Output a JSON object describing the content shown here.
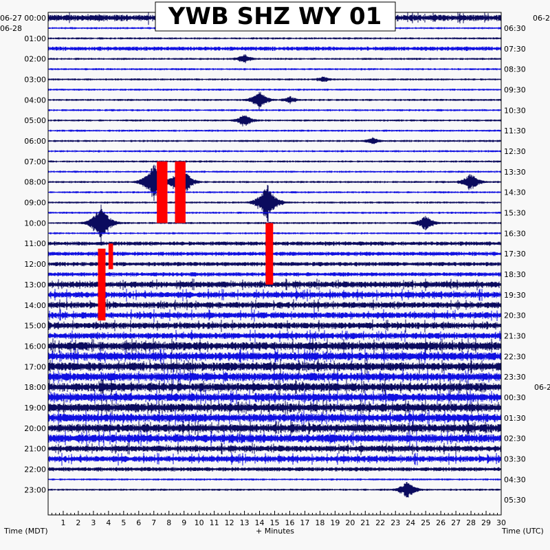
{
  "title": "YWB SHZ WY 01",
  "left_header": {
    "date_prev": "06-27",
    "date_cur": "06-28"
  },
  "right_header": {
    "date_cur": "06-2",
    "date_next": "06-2"
  },
  "left_axis_title": "Time (MDT)",
  "right_axis_title": "Time (UTC)",
  "bottom_axis_title": "+ Minutes",
  "colors": {
    "dark": "#0b0b5e",
    "blue": "#1010e0",
    "clip": "#ff0000",
    "frame": "#000000"
  },
  "chart_data": {
    "type": "helicorder",
    "station": "YWB",
    "channel": "SHZ",
    "network": "WY",
    "location": "01",
    "xlabel": "+ Minutes",
    "xlim": [
      0,
      30
    ],
    "x_ticks": [
      "1",
      "2",
      "3",
      "4",
      "5",
      "6",
      "7",
      "8",
      "9",
      "10",
      "11",
      "12",
      "13",
      "14",
      "15",
      "16",
      "17",
      "18",
      "19",
      "20",
      "21",
      "22",
      "23",
      "24",
      "25",
      "26",
      "27",
      "28",
      "29",
      "30"
    ],
    "rows_per_hour": 2,
    "row_count": 47,
    "left_hour_labels": [
      "00:00",
      "01:00",
      "02:00",
      "03:00",
      "04:00",
      "05:00",
      "06:00",
      "07:00",
      "08:00",
      "09:00",
      "10:00",
      "11:00",
      "12:00",
      "13:00",
      "14:00",
      "15:00",
      "16:00",
      "17:00",
      "18:00",
      "19:00",
      "20:00",
      "21:00",
      "22:00",
      "23:00"
    ],
    "right_hour_labels": [
      "06:30",
      "07:30",
      "08:30",
      "09:30",
      "10:30",
      "11:30",
      "12:30",
      "13:30",
      "14:30",
      "15:30",
      "16:30",
      "17:30",
      "18:30",
      "19:30",
      "20:30",
      "21:30",
      "22:30",
      "23:30",
      "00:30",
      "01:30",
      "02:30",
      "03:30",
      "04:30",
      "05:30"
    ],
    "row_amplitude_level": [
      3,
      1,
      1,
      2,
      1,
      1,
      1,
      1,
      1,
      1,
      1,
      1,
      1,
      1,
      1,
      1,
      1,
      1,
      1,
      1,
      1,
      1,
      2,
      2,
      2,
      2,
      3,
      3,
      3,
      3,
      3,
      3,
      4,
      4,
      4,
      4,
      4,
      4,
      4,
      4,
      4,
      4,
      3,
      3,
      2,
      1,
      1
    ],
    "events": [
      {
        "row": 4,
        "minute": 13.0,
        "amplitude": 8
      },
      {
        "row": 6,
        "minute": 18.2,
        "amplitude": 5
      },
      {
        "row": 8,
        "minute": 14.0,
        "amplitude": 14
      },
      {
        "row": 8,
        "minute": 16.0,
        "amplitude": 6
      },
      {
        "row": 10,
        "minute": 13.0,
        "amplitude": 10
      },
      {
        "row": 12,
        "minute": 21.5,
        "amplitude": 6
      },
      {
        "row": 16,
        "minute": 7.0,
        "amplitude": 30
      },
      {
        "row": 16,
        "minute": 8.8,
        "amplitude": 30
      },
      {
        "row": 16,
        "minute": 28.0,
        "amplitude": 14
      },
      {
        "row": 18,
        "minute": 14.5,
        "amplitude": 30
      },
      {
        "row": 20,
        "minute": 3.5,
        "amplitude": 30
      },
      {
        "row": 20,
        "minute": 25.0,
        "amplitude": 12
      },
      {
        "row": 46,
        "minute": 23.8,
        "amplitude": 14
      }
    ],
    "clipped_segments": [
      {
        "minute_start": 7.2,
        "minute_end": 7.9,
        "time_start": "07:00",
        "time_end": "10:00"
      },
      {
        "minute_start": 8.4,
        "minute_end": 9.1,
        "time_start": "07:00",
        "time_end": "10:00"
      },
      {
        "minute_start": 14.4,
        "minute_end": 14.9,
        "time_start": "10:00",
        "time_end": "13:00"
      },
      {
        "minute_start": 3.3,
        "minute_end": 3.8,
        "time_start": "11:15",
        "time_end": "14:45"
      },
      {
        "minute_start": 4.0,
        "minute_end": 4.3,
        "time_start": "11:00",
        "time_end": "12:15"
      }
    ]
  }
}
